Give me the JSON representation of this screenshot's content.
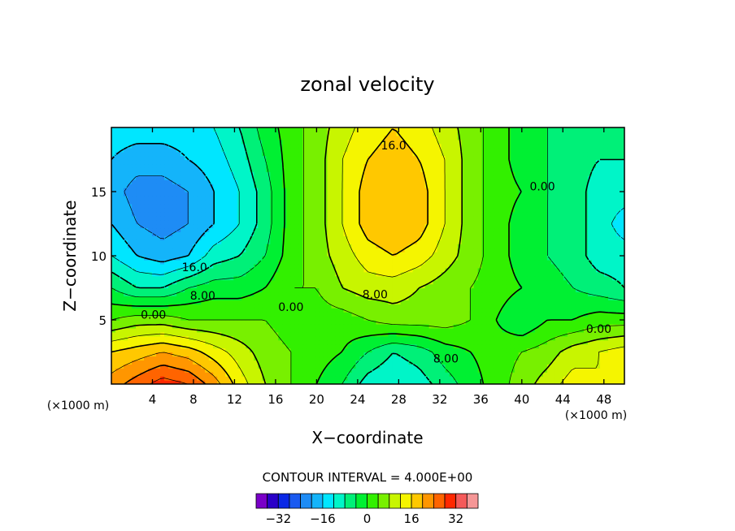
{
  "chart_data": {
    "type": "heatmap",
    "subtype": "filled-contour",
    "title": "zonal velocity",
    "xlabel": "X−coordinate",
    "ylabel": "Z−coordinate",
    "x_unit_left": "(×1000 m)",
    "x_unit_right": "(×1000 m)",
    "xlim": [
      0,
      50
    ],
    "ylim": [
      0,
      20
    ],
    "x_ticks": [
      4,
      8,
      12,
      16,
      20,
      24,
      28,
      32,
      36,
      40,
      44,
      48
    ],
    "y_ticks": [
      5,
      10,
      15
    ],
    "contour_interval_text": "CONTOUR INTERVAL = 4.000E+00",
    "contour_interval": 4,
    "grid": {
      "x": [
        0,
        2.5,
        5,
        7.5,
        10,
        12.5,
        15,
        17.5,
        20,
        22.5,
        25,
        27.5,
        30,
        32.5,
        35,
        37.5,
        40,
        42.5,
        45,
        47.5,
        50
      ],
      "z": [
        0,
        2.5,
        5,
        7.5,
        10,
        12.5,
        15,
        17.5,
        20
      ],
      "values": [
        [
          22,
          26,
          30,
          28,
          22,
          14,
          8,
          4,
          0,
          -4,
          -10,
          -12,
          -10,
          -6,
          -2,
          2,
          6,
          10,
          14,
          12,
          12
        ],
        [
          16,
          18,
          20,
          18,
          14,
          10,
          6,
          4,
          2,
          0,
          -4,
          -8,
          -6,
          -2,
          0,
          2,
          4,
          6,
          10,
          12,
          14
        ],
        [
          4,
          6,
          6,
          4,
          4,
          4,
          4,
          2,
          2,
          2,
          4,
          6,
          6,
          6,
          4,
          0,
          -4,
          0,
          0,
          2,
          2
        ],
        [
          -4,
          -8,
          -8,
          -4,
          -2,
          -2,
          0,
          4,
          4,
          8,
          10,
          10,
          8,
          6,
          4,
          2,
          0,
          -2,
          -4,
          -6,
          -8
        ],
        [
          -12,
          -16,
          -18,
          -16,
          -10,
          -8,
          -4,
          2,
          6,
          10,
          14,
          16,
          14,
          10,
          6,
          2,
          -2,
          -4,
          -6,
          -10,
          -10
        ],
        [
          -16,
          -20,
          -22,
          -20,
          -16,
          -12,
          -6,
          2,
          6,
          12,
          18,
          20,
          18,
          12,
          6,
          2,
          -2,
          -4,
          -6,
          -10,
          -14
        ],
        [
          -18,
          -22,
          -22,
          -20,
          -16,
          -12,
          -6,
          2,
          6,
          12,
          18,
          20,
          18,
          12,
          6,
          2,
          0,
          -4,
          -6,
          -10,
          -10
        ],
        [
          -16,
          -18,
          -18,
          -16,
          -14,
          -10,
          -4,
          2,
          6,
          12,
          16,
          18,
          16,
          12,
          6,
          2,
          -2,
          -4,
          -6,
          -8,
          -8
        ],
        [
          -14,
          -14,
          -14,
          -14,
          -12,
          -8,
          -2,
          2,
          6,
          10,
          14,
          16,
          14,
          10,
          6,
          2,
          -2,
          -4,
          -6,
          -6,
          -6
        ]
      ]
    },
    "contour_labels": [
      {
        "text": "16.0",
        "x": 27.5,
        "z": 18.6
      },
      {
        "text": "0.00",
        "x": 42,
        "z": 15.4
      },
      {
        "text": "16.0",
        "x": 8.1,
        "z": 9.1
      },
      {
        "text": "8.00",
        "x": 8.9,
        "z": 6.9
      },
      {
        "text": "0.00",
        "x": 17.5,
        "z": 6.0
      },
      {
        "text": "8.00",
        "x": 25.7,
        "z": 7.0
      },
      {
        "text": "0.00",
        "x": 4.1,
        "z": 5.4
      },
      {
        "text": "0.00",
        "x": 47.5,
        "z": 4.3
      },
      {
        "text": "8.00",
        "x": 32.6,
        "z": 2.0
      }
    ],
    "colorbar": {
      "levels": [
        -36,
        -32,
        -28,
        -24,
        -20,
        -16,
        -12,
        -8,
        -4,
        0,
        4,
        8,
        12,
        16,
        20,
        24,
        28,
        32,
        36
      ],
      "tick_labels": [
        "−32",
        "−16",
        "0",
        "16",
        "32"
      ],
      "tick_values": [
        -32,
        -16,
        0,
        16,
        32
      ],
      "colors": [
        "#7a00c8",
        "#2a00c8",
        "#0a28e6",
        "#1a5af0",
        "#1e8cf5",
        "#14b4fa",
        "#00e6ff",
        "#00f5c8",
        "#00f078",
        "#00f032",
        "#32f000",
        "#78f000",
        "#c8f500",
        "#f5f500",
        "#ffc800",
        "#ff9600",
        "#ff6400",
        "#ff2800",
        "#f55a5a",
        "#f59696"
      ]
    }
  }
}
